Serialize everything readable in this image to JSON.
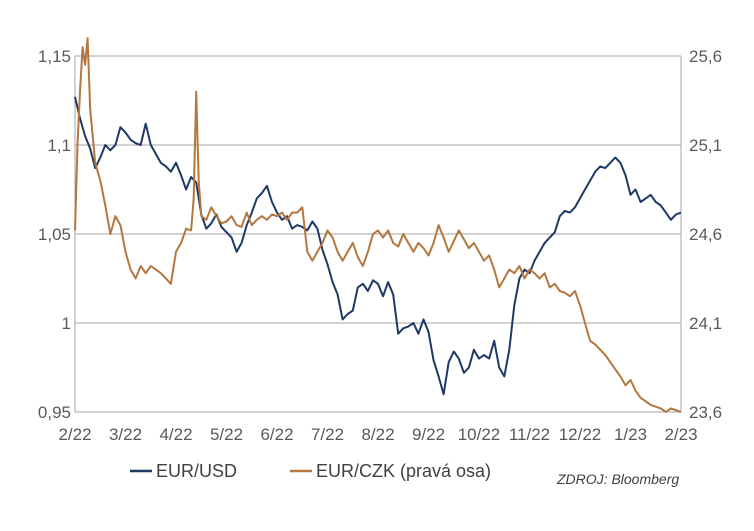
{
  "chart_data": {
    "type": "line",
    "title": "",
    "x_tick_labels": [
      "2/22",
      "3/22",
      "4/22",
      "5/22",
      "6/22",
      "7/22",
      "8/22",
      "9/22",
      "10/22",
      "11/22",
      "12/22",
      "1/23",
      "2/23"
    ],
    "left_axis": {
      "ylim": [
        0.95,
        1.15
      ],
      "tick_values": [
        0.95,
        1.0,
        1.05,
        1.1,
        1.15
      ],
      "tick_labels": [
        "0,95",
        "1",
        "1,05",
        "1,1",
        "1,15"
      ]
    },
    "right_axis": {
      "ylim": [
        23.6,
        25.6
      ],
      "tick_values": [
        23.6,
        24.1,
        24.6,
        25.1,
        25.6
      ],
      "tick_labels": [
        "23,6",
        "24,1",
        "24,6",
        "25,1",
        "25,6"
      ]
    },
    "gridlines": "horizontal",
    "legend_position": "bottom",
    "series": [
      {
        "name": "EUR/USD",
        "axis": "left",
        "color": "#1f3864",
        "values": [
          [
            0.0,
            1.127
          ],
          [
            0.1,
            1.115
          ],
          [
            0.2,
            1.105
          ],
          [
            0.3,
            1.098
          ],
          [
            0.4,
            1.087
          ],
          [
            0.5,
            1.093
          ],
          [
            0.6,
            1.1
          ],
          [
            0.7,
            1.097
          ],
          [
            0.8,
            1.1
          ],
          [
            0.9,
            1.11
          ],
          [
            1.0,
            1.107
          ],
          [
            1.1,
            1.103
          ],
          [
            1.2,
            1.101
          ],
          [
            1.3,
            1.1
          ],
          [
            1.4,
            1.112
          ],
          [
            1.5,
            1.1
          ],
          [
            1.6,
            1.095
          ],
          [
            1.7,
            1.09
          ],
          [
            1.8,
            1.088
          ],
          [
            1.9,
            1.085
          ],
          [
            2.0,
            1.09
          ],
          [
            2.1,
            1.083
          ],
          [
            2.2,
            1.075
          ],
          [
            2.3,
            1.082
          ],
          [
            2.4,
            1.079
          ],
          [
            2.5,
            1.061
          ],
          [
            2.6,
            1.053
          ],
          [
            2.7,
            1.056
          ],
          [
            2.8,
            1.061
          ],
          [
            2.9,
            1.054
          ],
          [
            3.0,
            1.051
          ],
          [
            3.1,
            1.048
          ],
          [
            3.2,
            1.04
          ],
          [
            3.3,
            1.045
          ],
          [
            3.4,
            1.055
          ],
          [
            3.5,
            1.062
          ],
          [
            3.6,
            1.07
          ],
          [
            3.7,
            1.073
          ],
          [
            3.8,
            1.077
          ],
          [
            3.9,
            1.068
          ],
          [
            4.0,
            1.062
          ],
          [
            4.1,
            1.058
          ],
          [
            4.2,
            1.06
          ],
          [
            4.3,
            1.053
          ],
          [
            4.4,
            1.055
          ],
          [
            4.5,
            1.054
          ],
          [
            4.6,
            1.052
          ],
          [
            4.7,
            1.057
          ],
          [
            4.8,
            1.053
          ],
          [
            4.9,
            1.041
          ],
          [
            5.0,
            1.033
          ],
          [
            5.1,
            1.023
          ],
          [
            5.2,
            1.016
          ],
          [
            5.3,
            1.002
          ],
          [
            5.4,
            1.005
          ],
          [
            5.5,
            1.007
          ],
          [
            5.6,
            1.02
          ],
          [
            5.7,
            1.022
          ],
          [
            5.8,
            1.018
          ],
          [
            5.9,
            1.024
          ],
          [
            6.0,
            1.022
          ],
          [
            6.1,
            1.015
          ],
          [
            6.2,
            1.023
          ],
          [
            6.3,
            1.016
          ],
          [
            6.4,
            0.994
          ],
          [
            6.5,
            0.997
          ],
          [
            6.6,
            0.998
          ],
          [
            6.7,
            1.0
          ],
          [
            6.8,
            0.994
          ],
          [
            6.9,
            1.002
          ],
          [
            7.0,
            0.995
          ],
          [
            7.1,
            0.979
          ],
          [
            7.2,
            0.97
          ],
          [
            7.3,
            0.96
          ],
          [
            7.4,
            0.978
          ],
          [
            7.5,
            0.984
          ],
          [
            7.6,
            0.98
          ],
          [
            7.7,
            0.972
          ],
          [
            7.8,
            0.975
          ],
          [
            7.9,
            0.985
          ],
          [
            8.0,
            0.98
          ],
          [
            8.1,
            0.982
          ],
          [
            8.2,
            0.98
          ],
          [
            8.3,
            0.99
          ],
          [
            8.4,
            0.975
          ],
          [
            8.5,
            0.97
          ],
          [
            8.6,
            0.985
          ],
          [
            8.7,
            1.01
          ],
          [
            8.8,
            1.025
          ],
          [
            8.9,
            1.03
          ],
          [
            9.0,
            1.028
          ],
          [
            9.1,
            1.035
          ],
          [
            9.2,
            1.04
          ],
          [
            9.3,
            1.045
          ],
          [
            9.4,
            1.048
          ],
          [
            9.5,
            1.051
          ],
          [
            9.6,
            1.06
          ],
          [
            9.7,
            1.063
          ],
          [
            9.8,
            1.062
          ],
          [
            9.9,
            1.065
          ],
          [
            10.0,
            1.07
          ],
          [
            10.1,
            1.075
          ],
          [
            10.2,
            1.08
          ],
          [
            10.3,
            1.085
          ],
          [
            10.4,
            1.088
          ],
          [
            10.5,
            1.087
          ],
          [
            10.6,
            1.09
          ],
          [
            10.7,
            1.093
          ],
          [
            10.8,
            1.09
          ],
          [
            10.9,
            1.083
          ],
          [
            11.0,
            1.072
          ],
          [
            11.1,
            1.075
          ],
          [
            11.2,
            1.068
          ],
          [
            11.3,
            1.07
          ],
          [
            11.4,
            1.072
          ],
          [
            11.5,
            1.068
          ],
          [
            11.6,
            1.066
          ],
          [
            11.7,
            1.062
          ],
          [
            11.8,
            1.058
          ],
          [
            11.9,
            1.061
          ],
          [
            12.0,
            1.062
          ]
        ]
      },
      {
        "name": "EUR/CZK (pravá osa)",
        "axis": "right",
        "color": "#b3773f",
        "values": [
          [
            0.0,
            24.62
          ],
          [
            0.05,
            25.1
          ],
          [
            0.1,
            25.4
          ],
          [
            0.15,
            25.65
          ],
          [
            0.2,
            25.55
          ],
          [
            0.25,
            25.7
          ],
          [
            0.3,
            25.3
          ],
          [
            0.4,
            25.0
          ],
          [
            0.5,
            24.9
          ],
          [
            0.6,
            24.76
          ],
          [
            0.7,
            24.6
          ],
          [
            0.8,
            24.7
          ],
          [
            0.9,
            24.65
          ],
          [
            1.0,
            24.5
          ],
          [
            1.1,
            24.4
          ],
          [
            1.2,
            24.35
          ],
          [
            1.3,
            24.42
          ],
          [
            1.4,
            24.38
          ],
          [
            1.5,
            24.42
          ],
          [
            1.6,
            24.4
          ],
          [
            1.7,
            24.38
          ],
          [
            1.8,
            24.35
          ],
          [
            1.9,
            24.32
          ],
          [
            2.0,
            24.5
          ],
          [
            2.1,
            24.55
          ],
          [
            2.2,
            24.63
          ],
          [
            2.3,
            24.62
          ],
          [
            2.35,
            24.8
          ],
          [
            2.4,
            25.4
          ],
          [
            2.45,
            24.9
          ],
          [
            2.5,
            24.7
          ],
          [
            2.6,
            24.68
          ],
          [
            2.7,
            24.75
          ],
          [
            2.8,
            24.7
          ],
          [
            2.9,
            24.66
          ],
          [
            3.0,
            24.67
          ],
          [
            3.1,
            24.7
          ],
          [
            3.2,
            24.65
          ],
          [
            3.3,
            24.64
          ],
          [
            3.4,
            24.72
          ],
          [
            3.5,
            24.65
          ],
          [
            3.6,
            24.68
          ],
          [
            3.7,
            24.7
          ],
          [
            3.8,
            24.68
          ],
          [
            3.9,
            24.71
          ],
          [
            4.0,
            24.7
          ],
          [
            4.1,
            24.72
          ],
          [
            4.2,
            24.68
          ],
          [
            4.3,
            24.72
          ],
          [
            4.4,
            24.72
          ],
          [
            4.5,
            24.75
          ],
          [
            4.6,
            24.5
          ],
          [
            4.7,
            24.45
          ],
          [
            4.8,
            24.5
          ],
          [
            4.9,
            24.55
          ],
          [
            5.0,
            24.62
          ],
          [
            5.1,
            24.58
          ],
          [
            5.2,
            24.5
          ],
          [
            5.3,
            24.45
          ],
          [
            5.4,
            24.5
          ],
          [
            5.5,
            24.55
          ],
          [
            5.6,
            24.47
          ],
          [
            5.7,
            24.42
          ],
          [
            5.8,
            24.5
          ],
          [
            5.9,
            24.6
          ],
          [
            6.0,
            24.62
          ],
          [
            6.1,
            24.58
          ],
          [
            6.2,
            24.62
          ],
          [
            6.3,
            24.55
          ],
          [
            6.4,
            24.53
          ],
          [
            6.5,
            24.6
          ],
          [
            6.6,
            24.55
          ],
          [
            6.7,
            24.5
          ],
          [
            6.8,
            24.55
          ],
          [
            6.9,
            24.52
          ],
          [
            7.0,
            24.48
          ],
          [
            7.1,
            24.55
          ],
          [
            7.2,
            24.65
          ],
          [
            7.3,
            24.58
          ],
          [
            7.4,
            24.5
          ],
          [
            7.5,
            24.56
          ],
          [
            7.6,
            24.62
          ],
          [
            7.7,
            24.57
          ],
          [
            7.8,
            24.52
          ],
          [
            7.9,
            24.55
          ],
          [
            8.0,
            24.5
          ],
          [
            8.1,
            24.45
          ],
          [
            8.2,
            24.48
          ],
          [
            8.3,
            24.4
          ],
          [
            8.4,
            24.3
          ],
          [
            8.5,
            24.35
          ],
          [
            8.6,
            24.4
          ],
          [
            8.7,
            24.38
          ],
          [
            8.8,
            24.42
          ],
          [
            8.9,
            24.35
          ],
          [
            9.0,
            24.4
          ],
          [
            9.1,
            24.38
          ],
          [
            9.2,
            24.35
          ],
          [
            9.3,
            24.38
          ],
          [
            9.4,
            24.3
          ],
          [
            9.5,
            24.32
          ],
          [
            9.6,
            24.28
          ],
          [
            9.7,
            24.27
          ],
          [
            9.8,
            24.25
          ],
          [
            9.9,
            24.28
          ],
          [
            10.0,
            24.2
          ],
          [
            10.1,
            24.1
          ],
          [
            10.2,
            24.0
          ],
          [
            10.3,
            23.98
          ],
          [
            10.4,
            23.95
          ],
          [
            10.5,
            23.92
          ],
          [
            10.6,
            23.88
          ],
          [
            10.7,
            23.84
          ],
          [
            10.8,
            23.8
          ],
          [
            10.9,
            23.75
          ],
          [
            11.0,
            23.78
          ],
          [
            11.1,
            23.72
          ],
          [
            11.2,
            23.68
          ],
          [
            11.3,
            23.66
          ],
          [
            11.4,
            23.64
          ],
          [
            11.5,
            23.63
          ],
          [
            11.6,
            23.62
          ],
          [
            11.7,
            23.6
          ],
          [
            11.8,
            23.62
          ],
          [
            11.9,
            23.61
          ],
          [
            12.0,
            23.6
          ]
        ]
      }
    ],
    "source": "ZDROJ: Bloomberg"
  }
}
